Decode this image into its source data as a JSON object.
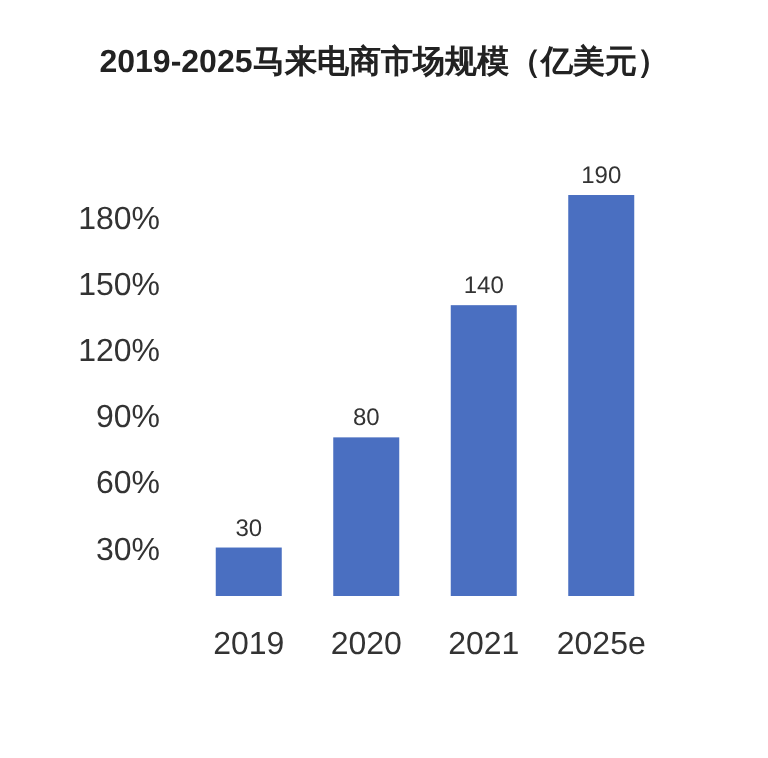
{
  "chart_data": {
    "type": "bar",
    "title": "2019-2025马来电商市场规模（亿美元）",
    "categories": [
      "2019",
      "2020",
      "2021",
      "2025e"
    ],
    "values": [
      30,
      80,
      140,
      190
    ],
    "color": "#4a6fc1",
    "data_labels": true,
    "ylim": [
      8,
      195
    ],
    "yticks": [
      {
        "value": 30,
        "label": "30%"
      },
      {
        "value": 60,
        "label": "60%"
      },
      {
        "value": 90,
        "label": "90%"
      },
      {
        "value": 120,
        "label": "120%"
      },
      {
        "value": 150,
        "label": "150%"
      },
      {
        "value": 180,
        "label": "180%"
      }
    ],
    "grid": false
  }
}
